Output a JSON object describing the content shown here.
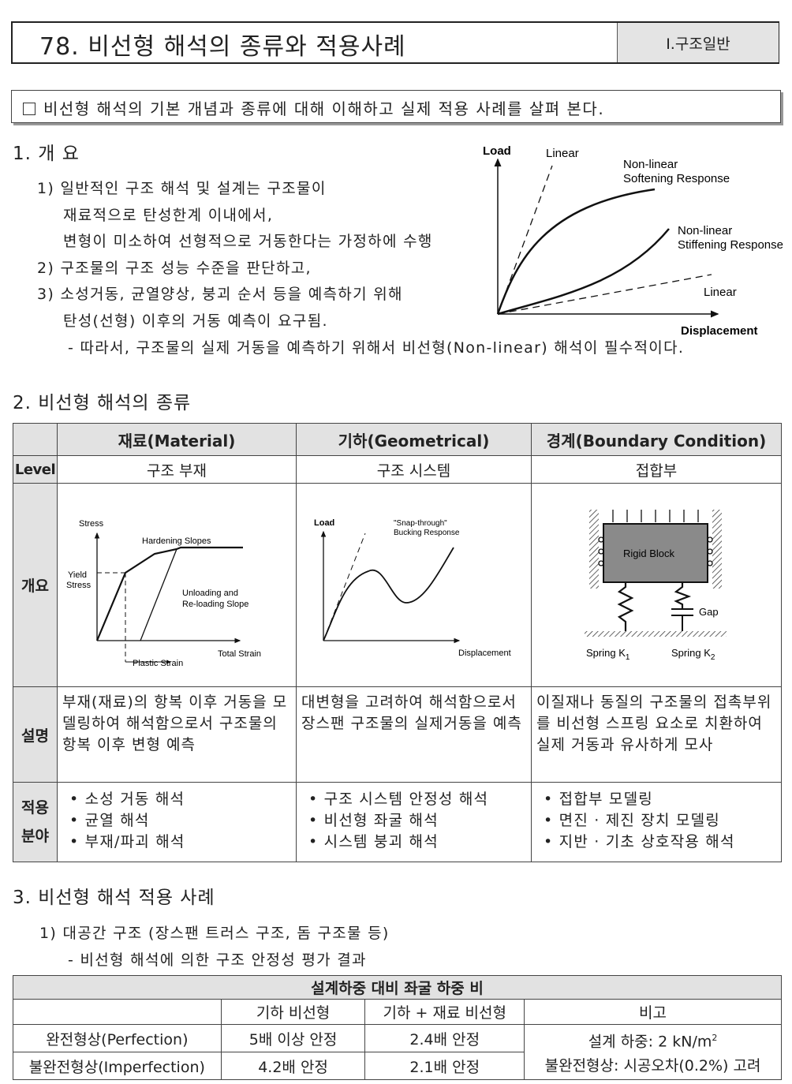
{
  "header": {
    "title": "78. 비선형 해석의 종류와 적용사례",
    "chapter": "Ⅰ.구조일반"
  },
  "goal": {
    "checkbox_icon": "square-outline",
    "text": "비선형 해석의 기본 개념과 종류에 대해 이해하고 실제 적용 사례를 살펴 본다."
  },
  "section1": {
    "heading": "1. 개 요",
    "lines": [
      "1) 일반적인 구조 해석 및 설계는 구조물이",
      "재료적으로 탄성한계 이내에서,",
      "변형이 미소하여 선형적으로 거동한다는 가정하에 수행",
      "2) 구조물의 구조 성능 수준을 판단하고,",
      "3) 소성거동, 균열양상, 붕괴 순서 등을 예측하기 위해",
      "탄성(선형) 이후의 거동 예측이  요구됨.",
      "- 따라서, 구조물의 실제 거동을 예측하기 위해서 비선형(Non-linear) 해석이 필수적이다."
    ],
    "figure": {
      "y_axis": "Load",
      "x_axis": "Displacement",
      "labels": {
        "linear_top": "Linear",
        "softening_1": "Non-linear",
        "softening_2": "Softening Response",
        "stiffening_1": "Non-linear",
        "stiffening_2": "Stiffening Response",
        "linear_bottom": "Linear"
      }
    }
  },
  "section2": {
    "heading": "2. 비선형 해석의 종류",
    "columns": [
      "재료(Material)",
      "기하(Geometrical)",
      "경계(Boundary Condition)"
    ],
    "rows": {
      "level": {
        "label": "Level",
        "values": [
          "구조 부재",
          "구조 시스템",
          "접합부"
        ]
      },
      "overview": {
        "label": "개요"
      },
      "description": {
        "label": "설명",
        "values": [
          "부재(재료)의 항복 이후 거동을 모델링하여 해석함으로서 구조물의 항복 이후 변형 예측",
          "대변형을 고려하여 해석함으로서 장스팬 구조물의 실제거동을 예측",
          "이질재나 동질의 구조물의 접촉부위를 비선형 스프링 요소로 치환하여 실제 거동과 유사하게 모사"
        ]
      },
      "application": {
        "label_1": "적용",
        "label_2": "분야",
        "values": [
          [
            "소성 거동 해석",
            "균열 해석",
            "부재/파괴 해석"
          ],
          [
            "구조 시스템 안정성 해석",
            "비선형 좌굴 해석",
            "시스템 붕괴 해석"
          ],
          [
            "접합부 모델링",
            "면진 · 제진 장치 모델링",
            "지반 · 기초 상호작용 해석"
          ]
        ]
      }
    },
    "fig_material": {
      "stress": "Stress",
      "hardening": "Hardening Slopes",
      "yield_1": "Yield",
      "yield_2": "Stress",
      "unload_1": "Unloading and",
      "unload_2": "Re-loading Slope",
      "total_strain": "Total Strain",
      "plastic_strain": "Plastic Strain"
    },
    "fig_geometric": {
      "load": "Load",
      "snap_1": "\"Snap-through\"",
      "snap_2": "Bucking Response",
      "displacement": "Displacement"
    },
    "fig_boundary": {
      "rigid_block": "Rigid Block",
      "gap": "Gap",
      "spring_1": "Spring K",
      "spring_1_sub": "1",
      "spring_2": "Spring K",
      "spring_2_sub": "2"
    }
  },
  "section3": {
    "heading": "3. 비선형 해석 적용 사례",
    "item": "1) 대공간 구조 (장스팬 트러스 구조, 돔 구조물 등)",
    "sub": "- 비선형 해석에 의한 구조 안정성 평가 결과",
    "table": {
      "title": "설계하중 대비 좌굴 하중 비",
      "headers": [
        "",
        "기하 비선형",
        "기하 + 재료 비선형",
        "비고"
      ],
      "rows": [
        [
          "완전형상(Perfection)",
          "5배 이상 안정",
          "2.4배 안정"
        ],
        [
          "불완전형상(Imperfection)",
          "4.2배 안정",
          "2.1배 안정"
        ]
      ],
      "note_1": "설계 하중: 2 kN/m",
      "note_1_sup": "2",
      "note_2": "불완전형상: 시공오차(0.2%) 고려"
    }
  }
}
